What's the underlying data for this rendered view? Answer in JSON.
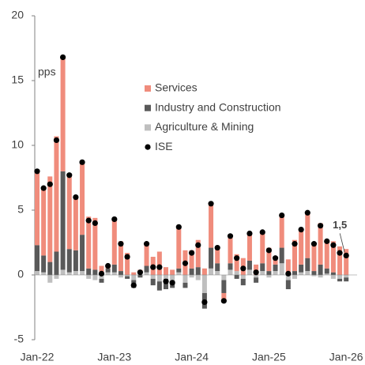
{
  "chart_data": {
    "type": "bar",
    "stacked": true,
    "y_label": "pps",
    "categories": [
      "Jan-22",
      null,
      null,
      null,
      null,
      null,
      null,
      null,
      null,
      null,
      null,
      null,
      "Jan-23",
      null,
      null,
      null,
      null,
      null,
      null,
      null,
      null,
      null,
      null,
      null,
      "Jan-24",
      null,
      null,
      null,
      null,
      null,
      null,
      null,
      null,
      null,
      null,
      null,
      "Jan-25",
      null,
      null,
      null,
      null,
      null,
      null,
      null,
      null,
      null,
      null,
      null,
      "Jan-26"
    ],
    "ylim": [
      -5,
      20
    ],
    "yticks": [
      -5,
      0,
      5,
      10,
      15,
      20
    ],
    "grid": false,
    "legend": "top-right",
    "series": [
      {
        "name": "Services",
        "type": "bar",
        "color": "#f08c7c",
        "values": [
          5.7,
          5.2,
          6.6,
          8.9,
          8.8,
          5.7,
          4.1,
          5.6,
          4.0,
          4.0,
          0.7,
          0.2,
          3.5,
          2.3,
          1.7,
          0.2,
          0.1,
          1.7,
          1.4,
          1.8,
          0.6,
          0.4,
          3.2,
          1.9,
          1.4,
          2.1,
          0.5,
          3.4,
          1.2,
          -0.6,
          2.1,
          1.3,
          1.3,
          2.1,
          0.8,
          2.4,
          1.8,
          0.5,
          2.5,
          1.2,
          2.4,
          2.7,
          3.5,
          2.2,
          3.2,
          2.1,
          2.4,
          2.2,
          2.0
        ]
      },
      {
        "name": "Industry and Construction",
        "type": "bar",
        "color": "#595959",
        "values": [
          2.0,
          1.3,
          1.0,
          1.8,
          7.6,
          1.8,
          1.6,
          2.8,
          0.5,
          0.4,
          -0.3,
          0.3,
          0.6,
          0.3,
          -0.2,
          -0.6,
          -0.2,
          0.5,
          -0.5,
          -0.7,
          -0.8,
          -0.5,
          0.3,
          -0.4,
          0.5,
          0.6,
          -1.2,
          1.6,
          0.6,
          -1.0,
          0.5,
          -0.3,
          -0.5,
          0.7,
          -0.4,
          0.6,
          0.3,
          0.5,
          1.2,
          -0.7,
          0.3,
          0.6,
          1.0,
          0.3,
          0.8,
          0.4,
          0.2,
          -0.2,
          -0.3
        ]
      },
      {
        "name": "Agriculture & Mining",
        "type": "bar",
        "color": "#bfbfbf",
        "values": [
          0.3,
          0.2,
          -0.6,
          -0.3,
          0.4,
          0.2,
          0.3,
          0.3,
          -0.3,
          -0.4,
          -0.3,
          0.2,
          0.2,
          -0.2,
          -0.1,
          -0.4,
          0.3,
          0.2,
          -0.3,
          -0.5,
          -0.3,
          -0.5,
          0.2,
          -0.6,
          -0.2,
          -0.4,
          -1.4,
          0.5,
          0.3,
          -0.4,
          0.4,
          0.3,
          -0.3,
          0.4,
          -0.2,
          0.3,
          -0.2,
          0.3,
          0.9,
          -0.4,
          -0.3,
          0.2,
          0.3,
          -0.1,
          -0.2,
          0.1,
          -0.3,
          -0.3,
          -0.2
        ]
      },
      {
        "name": "ISE",
        "type": "dot",
        "color": "#000000",
        "values": [
          8.0,
          6.7,
          7.0,
          10.4,
          16.8,
          7.7,
          6.0,
          8.7,
          4.2,
          4.0,
          0.1,
          0.7,
          4.3,
          2.4,
          1.4,
          -0.8,
          0.2,
          2.4,
          0.6,
          0.6,
          -0.5,
          -0.6,
          3.7,
          0.9,
          1.7,
          2.3,
          -2.1,
          5.5,
          2.1,
          -2.0,
          3.0,
          1.3,
          0.5,
          3.2,
          0.2,
          3.3,
          1.9,
          1.3,
          4.6,
          0.1,
          2.4,
          3.5,
          4.8,
          2.4,
          3.8,
          2.6,
          2.3,
          1.7,
          1.5
        ],
        "value_labels": [
          null,
          null,
          null,
          null,
          null,
          null,
          null,
          null,
          null,
          null,
          null,
          null,
          null,
          null,
          null,
          null,
          null,
          null,
          null,
          null,
          null,
          null,
          null,
          null,
          null,
          null,
          null,
          null,
          null,
          null,
          null,
          null,
          null,
          null,
          null,
          null,
          null,
          null,
          null,
          null,
          null,
          null,
          null,
          null,
          null,
          null,
          null,
          null,
          "1,5"
        ]
      }
    ]
  }
}
